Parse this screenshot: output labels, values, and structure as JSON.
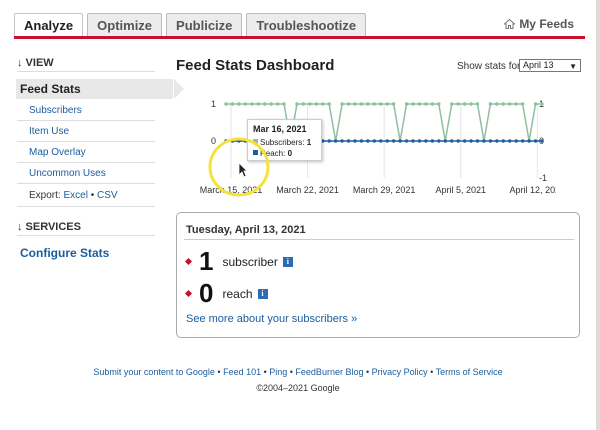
{
  "tabs": [
    {
      "label": "Analyze",
      "active": true
    },
    {
      "label": "Optimize",
      "active": false
    },
    {
      "label": "Publicize",
      "active": false
    },
    {
      "label": "Troubleshootize",
      "active": false
    }
  ],
  "my_feeds": "My Feeds",
  "sidebar": {
    "view_heading": "↓ VIEW",
    "feed_stats": "Feed Stats",
    "items": [
      {
        "label": "Subscribers"
      },
      {
        "label": "Item Use"
      },
      {
        "label": "Map Overlay"
      },
      {
        "label": "Uncommon Uses"
      }
    ],
    "export_label": "Export:",
    "export_excel": "Excel",
    "export_sep": "•",
    "export_csv": "CSV",
    "services_heading": "↓ SERVICES",
    "configure_stats": "Configure Stats"
  },
  "main": {
    "title": "Feed Stats Dashboard",
    "show_stats_for": "Show stats for",
    "date_selected": "April 13"
  },
  "chart_data": {
    "type": "line",
    "x_tick_labels": [
      "March 15, 2021",
      "March 22, 2021",
      "March 29, 2021",
      "April 5, 2021",
      "April 12, 2021"
    ],
    "left_axis": {
      "ticks": [
        "1",
        "0"
      ],
      "ylim": [
        0,
        1
      ]
    },
    "right_axis": {
      "ticks": [
        "1",
        "0",
        "-1"
      ],
      "ylim": [
        -1,
        1
      ]
    },
    "series": [
      {
        "name": "Subscribers",
        "color": "#8fbf9f",
        "values": [
          1,
          1,
          1,
          1,
          1,
          1,
          1,
          1,
          1,
          1,
          0,
          1,
          1,
          1,
          1,
          1,
          1,
          0,
          1,
          1,
          1,
          1,
          1,
          1,
          1,
          1,
          1,
          0,
          1,
          1,
          1,
          1,
          1,
          1,
          0,
          1,
          1,
          1,
          1,
          1,
          0,
          1,
          1,
          1,
          1,
          1,
          1,
          0,
          1,
          1
        ]
      },
      {
        "name": "Reach",
        "color": "#1f5fa0",
        "values": [
          0,
          0,
          0,
          0,
          0,
          0,
          0,
          0,
          0,
          0,
          0,
          0,
          0,
          0,
          0,
          0,
          0,
          0,
          0,
          0,
          0,
          0,
          0,
          0,
          0,
          0,
          0,
          0,
          0,
          0,
          0,
          0,
          0,
          0,
          0,
          0,
          0,
          0,
          0,
          0,
          0,
          0,
          0,
          0,
          0,
          0,
          0,
          0,
          0,
          0
        ]
      }
    ],
    "tooltip": {
      "date": "Mar 16, 2021",
      "subscribers_label": "Subscribers:",
      "subscribers_value": "1",
      "reach_label": "Reach:",
      "reach_value": "0"
    }
  },
  "stats_box": {
    "date": "Tuesday, April 13, 2021",
    "subscribers_value": "1",
    "subscribers_label": "subscriber",
    "reach_value": "0",
    "reach_label": "reach",
    "info_glyph": "i",
    "more_link": "See more about your subscribers »"
  },
  "footer": {
    "links": [
      "Submit your content to Google",
      "Feed 101",
      "Ping",
      "FeedBurner Blog",
      "Privacy Policy",
      "Terms of Service"
    ],
    "sep": " • ",
    "copyright": "©2004–2021 Google"
  }
}
